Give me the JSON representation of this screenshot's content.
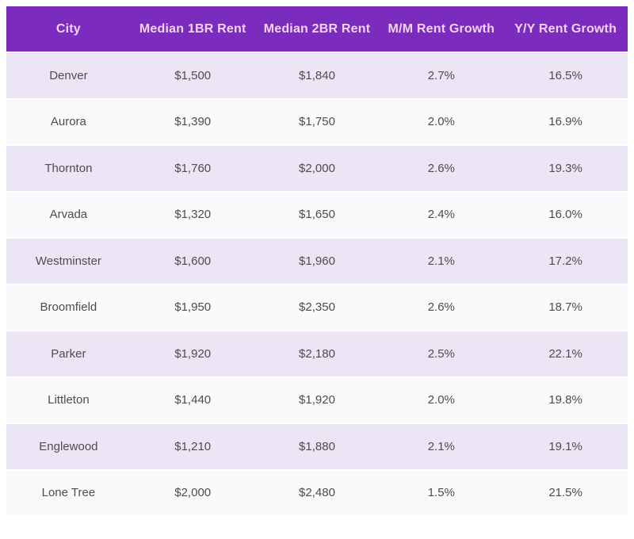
{
  "table": {
    "title": "city-rent-table",
    "columns": [
      "City",
      "Median 1BR Rent",
      "Median 2BR Rent",
      "M/M Rent Growth",
      "Y/Y Rent Growth"
    ],
    "rows": [
      [
        "Denver",
        "$1,500",
        "$1,840",
        "2.7%",
        "16.5%"
      ],
      [
        "Aurora",
        "$1,390",
        "$1,750",
        "2.0%",
        "16.9%"
      ],
      [
        "Thornton",
        "$1,760",
        "$2,000",
        "2.6%",
        "19.3%"
      ],
      [
        "Arvada",
        "$1,320",
        "$1,650",
        "2.4%",
        "16.0%"
      ],
      [
        "Westminster",
        "$1,600",
        "$1,960",
        "2.1%",
        "17.2%"
      ],
      [
        "Broomfield",
        "$1,950",
        "$2,350",
        "2.6%",
        "18.7%"
      ],
      [
        "Parker",
        "$1,920",
        "$2,180",
        "2.5%",
        "22.1%"
      ],
      [
        "Littleton",
        "$1,440",
        "$1,920",
        "2.0%",
        "19.8%"
      ],
      [
        "Englewood",
        "$1,210",
        "$1,880",
        "2.1%",
        "19.1%"
      ],
      [
        "Lone Tree",
        "$2,000",
        "$2,480",
        "1.5%",
        "21.5%"
      ]
    ],
    "colors": {
      "header_bg": "#7b2cbf",
      "header_text": "#f2d4f7",
      "row_odd_bg": "#ece5f6",
      "row_even_bg": "#faf9fb",
      "cell_text": "#4d4d4d",
      "page_bg": "#ffffff",
      "separator": "#ffffff"
    }
  }
}
